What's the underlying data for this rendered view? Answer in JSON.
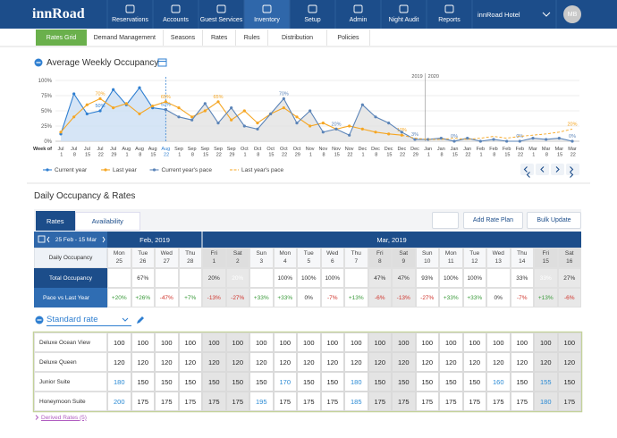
{
  "nav": {
    "logo": "innRoad",
    "items": [
      "Reservations",
      "Accounts",
      "Guest Services",
      "Inventory",
      "Setup",
      "Admin",
      "Night Audit",
      "Reports"
    ],
    "active": 3,
    "hotel": "innRoad Hotel",
    "avatar": "MB"
  },
  "subnav": {
    "tabs": [
      "Rates Grid",
      "Demand Management",
      "Seasons",
      "Rates",
      "Rules",
      "Distribution",
      "Policies"
    ],
    "active": 0
  },
  "chart_data": {
    "type": "line",
    "title": "Average Weekly Occupancy",
    "x_label": "Week of",
    "year_labels": [
      "2019",
      "2020"
    ],
    "categories": [
      "Jul 1",
      "Jul 8",
      "Jul 15",
      "Jul 22",
      "Jul 29",
      "Aug 1",
      "Aug 8",
      "Aug 15",
      "Aug 22",
      "Sep 1",
      "Sep 8",
      "Sep 15",
      "Sep 22",
      "Sep 29",
      "Oct 1",
      "Oct 8",
      "Oct 15",
      "Oct 22",
      "Oct 29",
      "Nov 1",
      "Nov 8",
      "Nov 15",
      "Nov 22",
      "Dec 1",
      "Dec 8",
      "Dec 15",
      "Dec 22",
      "Dec 29",
      "Jan 1",
      "Jan 8",
      "Jan 15",
      "Jan 22",
      "Feb 1",
      "Feb 8",
      "Feb 15",
      "Feb 22",
      "Mar 1",
      "Mar 8",
      "Mar 15",
      "Mar 22"
    ],
    "ylim": [
      0,
      100
    ],
    "yticks": [
      {
        "value": 0,
        "label": "0%"
      },
      {
        "value": 25,
        "label": "25%"
      },
      {
        "value": 50,
        "label": "50%"
      },
      {
        "value": 75,
        "label": "75%"
      },
      {
        "value": 100,
        "label": "100%"
      }
    ],
    "grid": true,
    "series": [
      {
        "name": "Current year",
        "color": "#2f7fd1",
        "area": "#cfe0f5",
        "dashed": false,
        "markers": true,
        "values": [
          12,
          78,
          45,
          50,
          85,
          60,
          88,
          55,
          52,
          null,
          null,
          null,
          null,
          null,
          null,
          null,
          null,
          null,
          null,
          null,
          null,
          null,
          null,
          null,
          null,
          null,
          null,
          null,
          null,
          null,
          null,
          null,
          null,
          null,
          null,
          null,
          null,
          null,
          null,
          null
        ],
        "value_labels": [
          null,
          null,
          null,
          "50%",
          null,
          null,
          null,
          null,
          "52%",
          null,
          null,
          null,
          null,
          null,
          null,
          null,
          null,
          null,
          null,
          null,
          null,
          null,
          null,
          null,
          null,
          null,
          null,
          null,
          null,
          null,
          null,
          null,
          null,
          null,
          null,
          null,
          null,
          null,
          null,
          null
        ]
      },
      {
        "name": "Last year",
        "color": "#f5a623",
        "area": null,
        "dashed": false,
        "markers": true,
        "values": [
          15,
          40,
          60,
          70,
          55,
          62,
          45,
          58,
          65,
          55,
          40,
          50,
          65,
          35,
          50,
          30,
          45,
          55,
          40,
          25,
          30,
          20,
          25,
          20,
          15,
          12,
          10,
          null,
          null,
          null,
          null,
          null,
          null,
          null,
          null,
          null,
          null,
          null,
          null,
          null
        ],
        "value_labels": [
          null,
          null,
          null,
          "70%",
          null,
          null,
          null,
          null,
          "65%",
          null,
          null,
          null,
          "65%",
          null,
          null,
          null,
          null,
          null,
          null,
          null,
          null,
          null,
          null,
          null,
          null,
          null,
          "10%",
          null,
          null,
          null,
          null,
          null,
          null,
          null,
          null,
          null,
          null,
          null,
          null,
          null
        ]
      },
      {
        "name": "Current year's pace",
        "color": "#5b84b8",
        "area": "#e4e4e4",
        "dashed": false,
        "markers": true,
        "values": [
          null,
          null,
          null,
          null,
          null,
          null,
          null,
          null,
          52,
          40,
          35,
          62,
          30,
          55,
          25,
          20,
          45,
          70,
          30,
          50,
          15,
          20,
          10,
          60,
          40,
          30,
          15,
          3,
          3,
          5,
          0,
          5,
          0,
          3,
          0,
          0,
          5,
          3,
          5,
          0
        ],
        "value_labels": [
          null,
          null,
          null,
          null,
          null,
          null,
          null,
          null,
          null,
          null,
          null,
          null,
          null,
          null,
          null,
          null,
          null,
          "70%",
          null,
          null,
          null,
          "20%",
          null,
          null,
          null,
          null,
          null,
          "3%",
          null,
          null,
          "0%",
          null,
          null,
          null,
          null,
          "0%",
          null,
          null,
          null,
          "0%"
        ]
      },
      {
        "name": "Last year's pace",
        "color": "#f5a623",
        "area": null,
        "dashed": true,
        "markers": false,
        "values": [
          null,
          null,
          null,
          null,
          null,
          null,
          null,
          null,
          null,
          null,
          null,
          null,
          null,
          null,
          null,
          null,
          null,
          null,
          null,
          null,
          null,
          null,
          null,
          null,
          null,
          null,
          10,
          5,
          3,
          3,
          5,
          3,
          5,
          8,
          5,
          8,
          10,
          12,
          15,
          20
        ],
        "value_labels": [
          null,
          null,
          null,
          null,
          null,
          null,
          null,
          null,
          null,
          null,
          null,
          null,
          null,
          null,
          null,
          null,
          null,
          null,
          null,
          null,
          null,
          null,
          null,
          null,
          null,
          null,
          null,
          null,
          null,
          null,
          null,
          null,
          null,
          null,
          null,
          null,
          null,
          null,
          null,
          "20%"
        ]
      }
    ]
  },
  "daily": {
    "title": "Daily Occupancy & Rates",
    "tabs": [
      "Rates",
      "Availability"
    ],
    "active_tab": 0,
    "buttons": [
      "Add Rate Plan",
      "Bulk Update"
    ],
    "date_range": "25 Feb - 15 Mar",
    "months": [
      "Feb, 2019",
      "Mar, 2019"
    ],
    "days": [
      {
        "weekday": "Mon",
        "day": "25"
      },
      {
        "weekday": "Tue",
        "day": "26"
      },
      {
        "weekday": "Wed",
        "day": "27"
      },
      {
        "weekday": "Thu",
        "day": "28"
      },
      {
        "weekday": "Fri",
        "day": "1"
      },
      {
        "weekday": "Sat",
        "day": "2"
      },
      {
        "weekday": "Sun",
        "day": "3"
      },
      {
        "weekday": "Mon",
        "day": "4"
      },
      {
        "weekday": "Tue",
        "day": "5"
      },
      {
        "weekday": "Wed",
        "day": "6"
      },
      {
        "weekday": "Thu",
        "day": "7"
      },
      {
        "weekday": "Fri",
        "day": "8"
      },
      {
        "weekday": "Sat",
        "day": "9"
      },
      {
        "weekday": "Sun",
        "day": "10"
      },
      {
        "weekday": "Mon",
        "day": "11"
      },
      {
        "weekday": "Tue",
        "day": "12"
      },
      {
        "weekday": "Wed",
        "day": "13"
      },
      {
        "weekday": "Thu",
        "day": "14"
      },
      {
        "weekday": "Fri",
        "day": "15"
      },
      {
        "weekday": "Sat",
        "day": "16"
      }
    ],
    "daily_occupancy": "Daily Occupancy",
    "total_occupancy": {
      "label": "Total Occupancy",
      "values": [
        "87%",
        "67%",
        "13%",
        "27%",
        "20%",
        "20%",
        "73%",
        "100%",
        "100%",
        "100%",
        "40%",
        "47%",
        "47%",
        "93%",
        "100%",
        "100%",
        "68%",
        "33%",
        "33%",
        "27%"
      ],
      "badge_colors": [
        "#7cc544",
        null,
        "#d9391e",
        "#f0a531",
        null,
        "#d9391e",
        "#7cc544",
        null,
        null,
        null,
        "#7cc544",
        null,
        null,
        null,
        null,
        null,
        "#7cc544",
        null,
        "#7cc544",
        null
      ]
    },
    "pace": {
      "label": "Pace vs Last Year",
      "values": [
        "+20%",
        "+26%",
        "-47%",
        "+7%",
        "-13%",
        "-27%",
        "+33%",
        "+33%",
        "0%",
        "-7%",
        "+13%",
        "-6%",
        "-13%",
        "-27%",
        "+33%",
        "+33%",
        "0%",
        "-7%",
        "+13%",
        "-6%"
      ]
    },
    "rate_plan": "Standard rate",
    "override_color": "#2a8ad4",
    "room_types": [
      {
        "name": "Deluxe Ocean View",
        "rates": [
          100,
          100,
          100,
          100,
          100,
          100,
          100,
          100,
          100,
          100,
          100,
          100,
          100,
          100,
          100,
          100,
          100,
          100,
          100,
          100
        ],
        "overridden": []
      },
      {
        "name": "Deluxe Queen",
        "rates": [
          120,
          120,
          120,
          120,
          120,
          120,
          120,
          120,
          120,
          120,
          120,
          120,
          120,
          120,
          120,
          120,
          120,
          120,
          120,
          120
        ],
        "overridden": []
      },
      {
        "name": "Junior Suite",
        "rates": [
          180,
          150,
          150,
          150,
          150,
          150,
          150,
          170,
          150,
          150,
          180,
          150,
          150,
          150,
          150,
          150,
          160,
          150,
          155,
          150
        ],
        "overridden": [
          0,
          7,
          10,
          16,
          18
        ]
      },
      {
        "name": "Honeymoon Suite",
        "rates": [
          200,
          175,
          175,
          175,
          175,
          175,
          195,
          175,
          175,
          175,
          185,
          175,
          175,
          175,
          175,
          175,
          175,
          175,
          180,
          175
        ],
        "overridden": [
          0,
          6,
          10,
          18
        ]
      }
    ],
    "derived_rates": "Derived Rates (5)"
  }
}
